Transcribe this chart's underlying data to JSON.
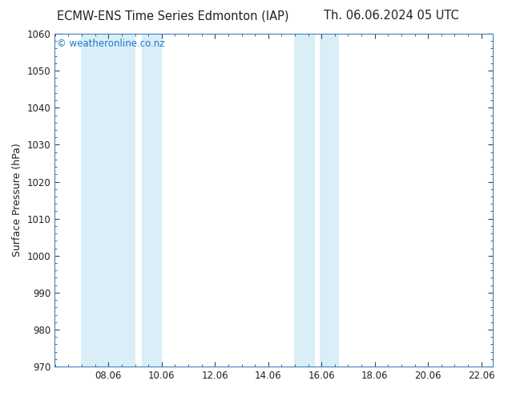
{
  "title_left": "ECMW-ENS Time Series Edmonton (IAP)",
  "title_right": "Th. 06.06.2024 05 UTC",
  "ylabel": "Surface Pressure (hPa)",
  "watermark": "© weatheronline.co.nz",
  "watermark_color": "#1a7ac8",
  "ylim": [
    970,
    1060
  ],
  "yticks": [
    970,
    980,
    990,
    1000,
    1010,
    1020,
    1030,
    1040,
    1050,
    1060
  ],
  "xlim_start": 6.04,
  "xlim_end": 22.5,
  "xticks": [
    8.06,
    10.06,
    12.06,
    14.06,
    16.06,
    18.06,
    20.06,
    22.06
  ],
  "xtick_labels": [
    "08.06",
    "10.06",
    "12.06",
    "14.06",
    "16.06",
    "18.06",
    "20.06",
    "22.06"
  ],
  "shaded_bands": [
    {
      "x_start": 7.04,
      "x_end": 9.06
    },
    {
      "x_start": 9.3,
      "x_end": 10.08
    },
    {
      "x_start": 15.04,
      "x_end": 15.8
    },
    {
      "x_start": 16.0,
      "x_end": 16.7
    }
  ],
  "band_color": "#daeef8",
  "background_color": "#ffffff",
  "plot_bg_color": "#ffffff",
  "border_color": "#4080c0",
  "tick_color": "#444444",
  "title_fontsize": 10.5,
  "ylabel_fontsize": 9,
  "tick_fontsize": 8.5,
  "watermark_fontsize": 8.5
}
